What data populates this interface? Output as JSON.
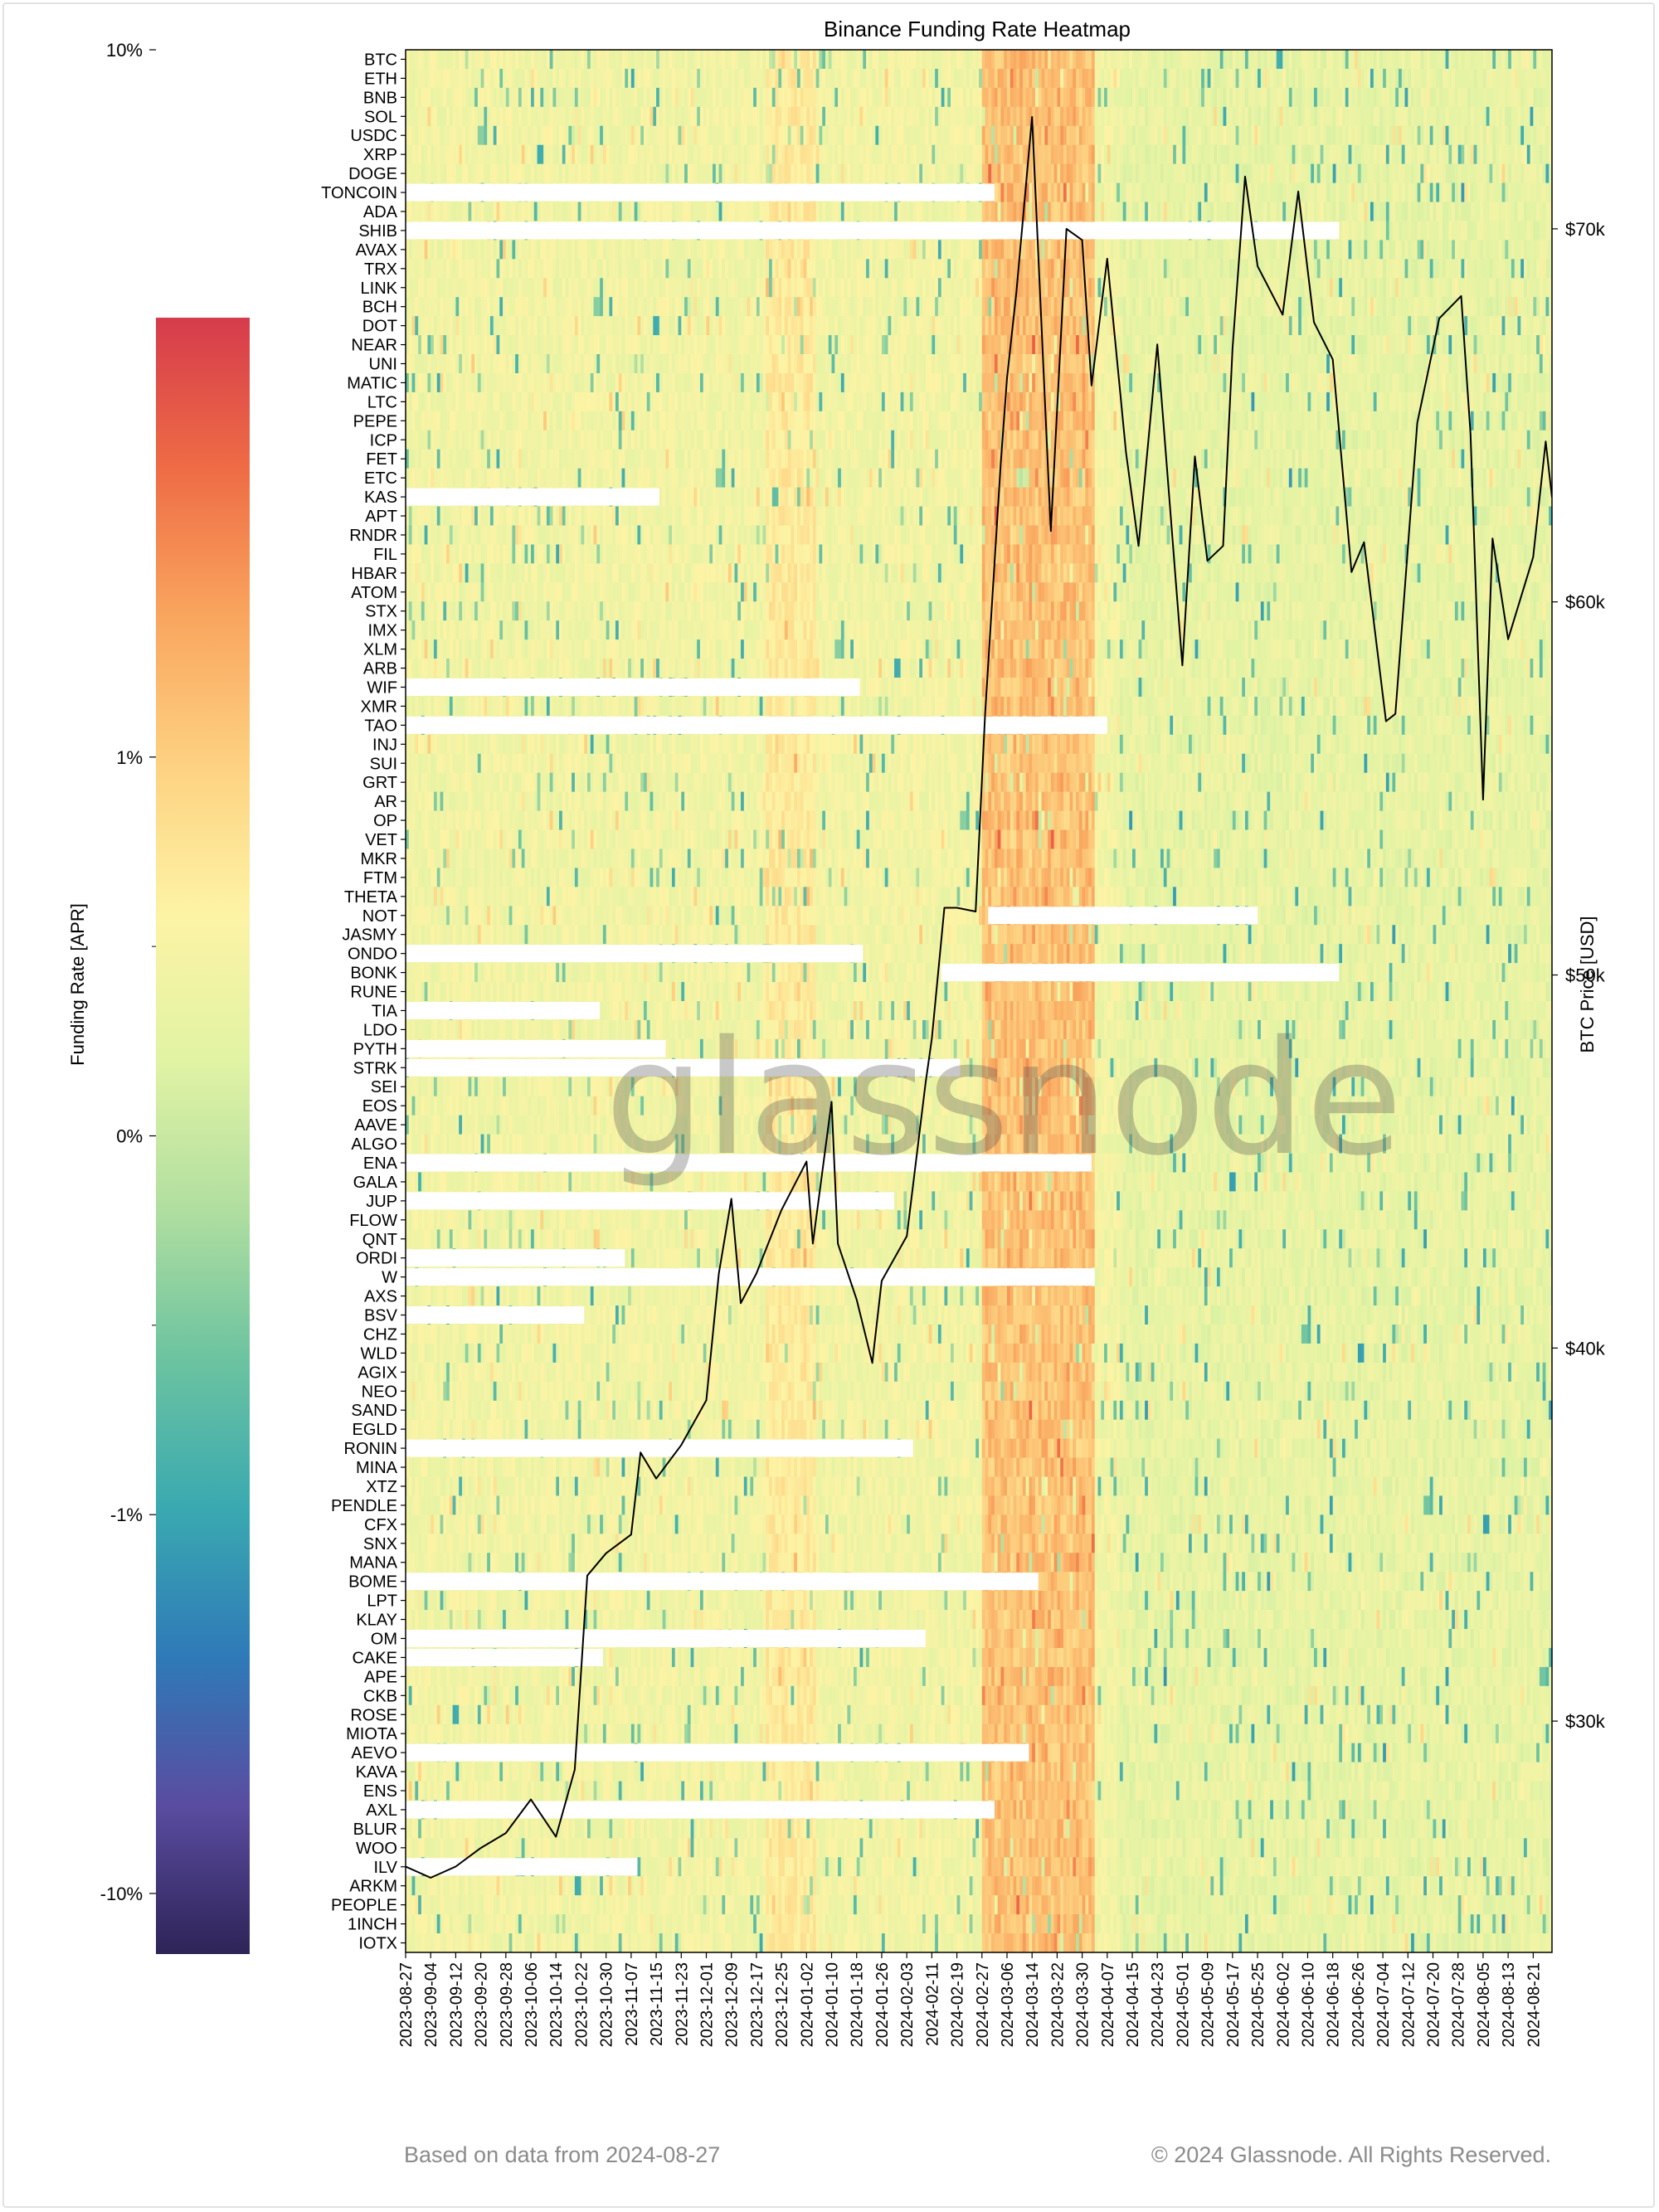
{
  "chart_data": {
    "type": "heatmap",
    "title": "Binance Funding Rate Heatmap",
    "colorbar": {
      "label": "Funding Rate [APR]",
      "ticks": [
        "10%",
        "1%",
        "0%",
        "-1%",
        "-10%"
      ],
      "tick_values": [
        10,
        1,
        0,
        -1,
        -10
      ],
      "scale": "symlog",
      "colormap": [
        "#2e2457",
        "#5a4ca0",
        "#2f7ab8",
        "#3aa9b0",
        "#6cc3a0",
        "#b0dea0",
        "#e1f3a4",
        "#fdf3a5",
        "#fdd181",
        "#f9a55e",
        "#ee6b45",
        "#d63c4c"
      ]
    },
    "ylabel_right": "BTC Price [USD]",
    "price_ticks": [
      "$30k",
      "$40k",
      "$50k",
      "$60k",
      "$70k"
    ],
    "price_tick_values": [
      30000,
      40000,
      50000,
      60000,
      70000
    ],
    "price_range": [
      23800,
      74800
    ],
    "date_range": [
      "2023-08-27",
      "2024-08-27"
    ],
    "x_tick_labels": [
      "2023-08-27",
      "2023-09-04",
      "2023-09-12",
      "2023-09-20",
      "2023-09-28",
      "2023-10-06",
      "2023-10-14",
      "2023-10-22",
      "2023-10-30",
      "2023-11-07",
      "2023-11-15",
      "2023-11-23",
      "2023-12-01",
      "2023-12-09",
      "2023-12-17",
      "2023-12-25",
      "2024-01-02",
      "2024-01-10",
      "2024-01-18",
      "2024-01-26",
      "2024-02-03",
      "2024-02-11",
      "2024-02-19",
      "2024-02-27",
      "2024-03-06",
      "2024-03-14",
      "2024-03-22",
      "2024-03-30",
      "2024-04-07",
      "2024-04-15",
      "2024-04-23",
      "2024-05-01",
      "2024-05-09",
      "2024-05-17",
      "2024-05-25",
      "2024-06-02",
      "2024-06-10",
      "2024-06-18",
      "2024-06-26",
      "2024-07-04",
      "2024-07-12",
      "2024-07-20",
      "2024-07-28",
      "2024-08-05",
      "2024-08-13",
      "2024-08-21"
    ],
    "assets": [
      "BTC",
      "ETH",
      "BNB",
      "SOL",
      "USDC",
      "XRP",
      "DOGE",
      "TONCOIN",
      "ADA",
      "SHIB",
      "AVAX",
      "TRX",
      "LINK",
      "BCH",
      "DOT",
      "NEAR",
      "UNI",
      "MATIC",
      "LTC",
      "PEPE",
      "ICP",
      "FET",
      "ETC",
      "KAS",
      "APT",
      "RNDR",
      "FIL",
      "HBAR",
      "ATOM",
      "STX",
      "IMX",
      "XLM",
      "ARB",
      "WIF",
      "XMR",
      "TAO",
      "INJ",
      "SUI",
      "GRT",
      "AR",
      "OP",
      "VET",
      "MKR",
      "FTM",
      "THETA",
      "NOT",
      "JASMY",
      "ONDO",
      "BONK",
      "RUNE",
      "TIA",
      "LDO",
      "PYTH",
      "STRK",
      "SEI",
      "EOS",
      "AAVE",
      "ALGO",
      "ENA",
      "GALA",
      "JUP",
      "FLOW",
      "QNT",
      "ORDI",
      "W",
      "AXS",
      "BSV",
      "CHZ",
      "WLD",
      "AGIX",
      "NEO",
      "SAND",
      "EGLD",
      "RONIN",
      "MINA",
      "XTZ",
      "PENDLE",
      "CFX",
      "SNX",
      "MANA",
      "BOME",
      "LPT",
      "KLAY",
      "OM",
      "CAKE",
      "APE",
      "CKB",
      "ROSE",
      "MIOTA",
      "AEVO",
      "KAVA",
      "ENS",
      "AXL",
      "BLUR",
      "WOO",
      "ILV",
      "ARKM",
      "PEOPLE",
      "1INCH",
      "IOTX"
    ],
    "listing_gaps": [
      {
        "asset": "TONCOIN",
        "until": "2024-03-02"
      },
      {
        "asset": "SHIB",
        "until": "2024-06-20"
      },
      {
        "asset": "KAS",
        "until": "2023-11-16"
      },
      {
        "asset": "WIF",
        "until": "2024-01-19"
      },
      {
        "asset": "TAO",
        "until": "2024-04-07"
      },
      {
        "asset": "NOT",
        "until": "2024-02-29",
        "from": "2024-02-29",
        "to": "2024-05-25"
      },
      {
        "asset": "ONDO",
        "until": "2024-01-20"
      },
      {
        "asset": "BONK",
        "from": "2024-02-14",
        "to": "2024-06-20"
      },
      {
        "asset": "TIA",
        "until": "2023-10-28"
      },
      {
        "asset": "PYTH",
        "until": "2023-11-18"
      },
      {
        "asset": "STRK",
        "until": "2024-02-20"
      },
      {
        "asset": "ENA",
        "until": "2024-04-02"
      },
      {
        "asset": "JUP",
        "until": "2024-01-30"
      },
      {
        "asset": "ORDI",
        "until": "2023-11-05"
      },
      {
        "asset": "W",
        "until": "2024-04-03"
      },
      {
        "asset": "BSV",
        "until": "2023-10-23"
      },
      {
        "asset": "RONIN",
        "until": "2024-02-05"
      },
      {
        "asset": "BOME",
        "until": "2024-03-16"
      },
      {
        "asset": "OM",
        "until": "2024-02-09"
      },
      {
        "asset": "CAKE",
        "until": "2023-10-29"
      },
      {
        "asset": "AEVO",
        "until": "2024-03-13"
      },
      {
        "asset": "AXL",
        "until": "2024-03-02"
      },
      {
        "asset": "ILV",
        "until": "2023-11-09"
      }
    ],
    "btc_price": {
      "x": [
        "2023-08-27",
        "2023-09-04",
        "2023-09-12",
        "2023-09-20",
        "2023-09-28",
        "2023-10-06",
        "2023-10-14",
        "2023-10-20",
        "2023-10-24",
        "2023-10-30",
        "2023-11-07",
        "2023-11-10",
        "2023-11-15",
        "2023-11-23",
        "2023-12-01",
        "2023-12-05",
        "2023-12-09",
        "2023-12-12",
        "2023-12-17",
        "2023-12-25",
        "2024-01-02",
        "2024-01-04",
        "2024-01-10",
        "2024-01-12",
        "2024-01-18",
        "2024-01-23",
        "2024-01-26",
        "2024-02-03",
        "2024-02-09",
        "2024-02-11",
        "2024-02-15",
        "2024-02-19",
        "2024-02-25",
        "2024-02-28",
        "2024-03-04",
        "2024-03-06",
        "2024-03-09",
        "2024-03-14",
        "2024-03-20",
        "2024-03-25",
        "2024-03-30",
        "2024-04-02",
        "2024-04-07",
        "2024-04-13",
        "2024-04-17",
        "2024-04-23",
        "2024-05-01",
        "2024-05-05",
        "2024-05-09",
        "2024-05-14",
        "2024-05-17",
        "2024-05-21",
        "2024-05-25",
        "2024-06-02",
        "2024-06-07",
        "2024-06-12",
        "2024-06-18",
        "2024-06-24",
        "2024-06-28",
        "2024-07-05",
        "2024-07-08",
        "2024-07-15",
        "2024-07-22",
        "2024-07-29",
        "2024-08-01",
        "2024-08-05",
        "2024-08-08",
        "2024-08-13",
        "2024-08-21",
        "2024-08-25",
        "2024-08-27"
      ],
      "y": [
        26100,
        25800,
        26100,
        26600,
        27000,
        27900,
        26900,
        28700,
        33900,
        34500,
        35000,
        37200,
        36500,
        37400,
        38600,
        42000,
        44000,
        41200,
        42000,
        43700,
        45000,
        42800,
        46600,
        42800,
        41300,
        39600,
        41800,
        43000,
        47100,
        48300,
        51800,
        51800,
        51700,
        57000,
        63700,
        66000,
        68300,
        73000,
        61900,
        70000,
        69700,
        65800,
        69200,
        64000,
        61500,
        66900,
        58300,
        63900,
        61100,
        61500,
        66800,
        71400,
        69000,
        67700,
        71000,
        67500,
        66500,
        60800,
        61600,
        56800,
        57000,
        64800,
        67600,
        68200,
        64500,
        54700,
        61700,
        59000,
        61200,
        64300,
        62800
      ]
    },
    "hot_period": [
      "2024-02-27",
      "2024-04-03"
    ],
    "footer_left": "Based on data from 2024-08-27",
    "footer_right": "© 2024 Glassnode. All Rights Reserved.",
    "watermark": "glassnode"
  }
}
